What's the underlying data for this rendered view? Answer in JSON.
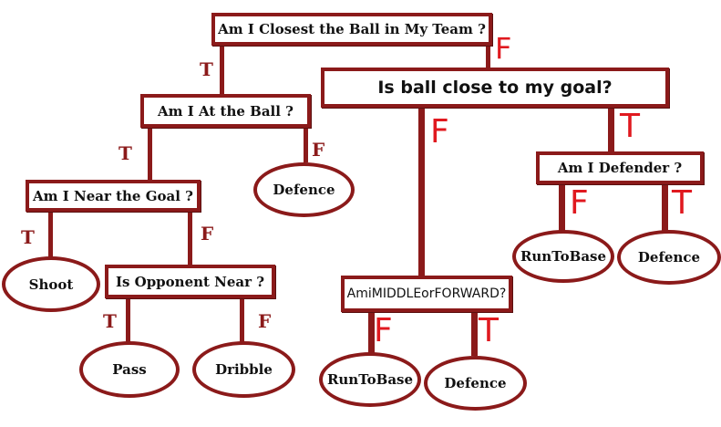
{
  "nodes": {
    "q_closest": "Am I Closest the Ball in My Team ?",
    "q_goal_close": "Is ball close to my goal?",
    "q_at_ball": "Am I At the Ball ?",
    "q_defender": "Am I Defender ?",
    "q_near_goal": "Am I Near the Goal ?",
    "q_opponent": "Is Opponent Near ?",
    "q_mid_fwd": "AmiMIDDLEorFORWARD?",
    "a_defence_1": "Defence",
    "a_shoot": "Shoot",
    "a_pass": "Pass",
    "a_dribble": "Dribble",
    "a_runtobase_1": "RunToBase",
    "a_defence_2": "Defence",
    "a_runtobase_2": "RunToBase",
    "a_defence_3": "Defence"
  },
  "edges": {
    "closest_true": "T",
    "closest_false": "F",
    "atball_true": "T",
    "atball_false": "F",
    "neargoal_true": "T",
    "neargoal_false": "F",
    "opponent_true": "T",
    "opponent_false": "F",
    "goalclose_false": "F",
    "goalclose_true": "T",
    "defender_false": "F",
    "defender_true": "T",
    "midfwd_false": "F",
    "midfwd_true": "T"
  },
  "colors": {
    "line": "#8b1a1a",
    "label_dark": "#8b1a1a",
    "label_red": "#e0191f"
  }
}
